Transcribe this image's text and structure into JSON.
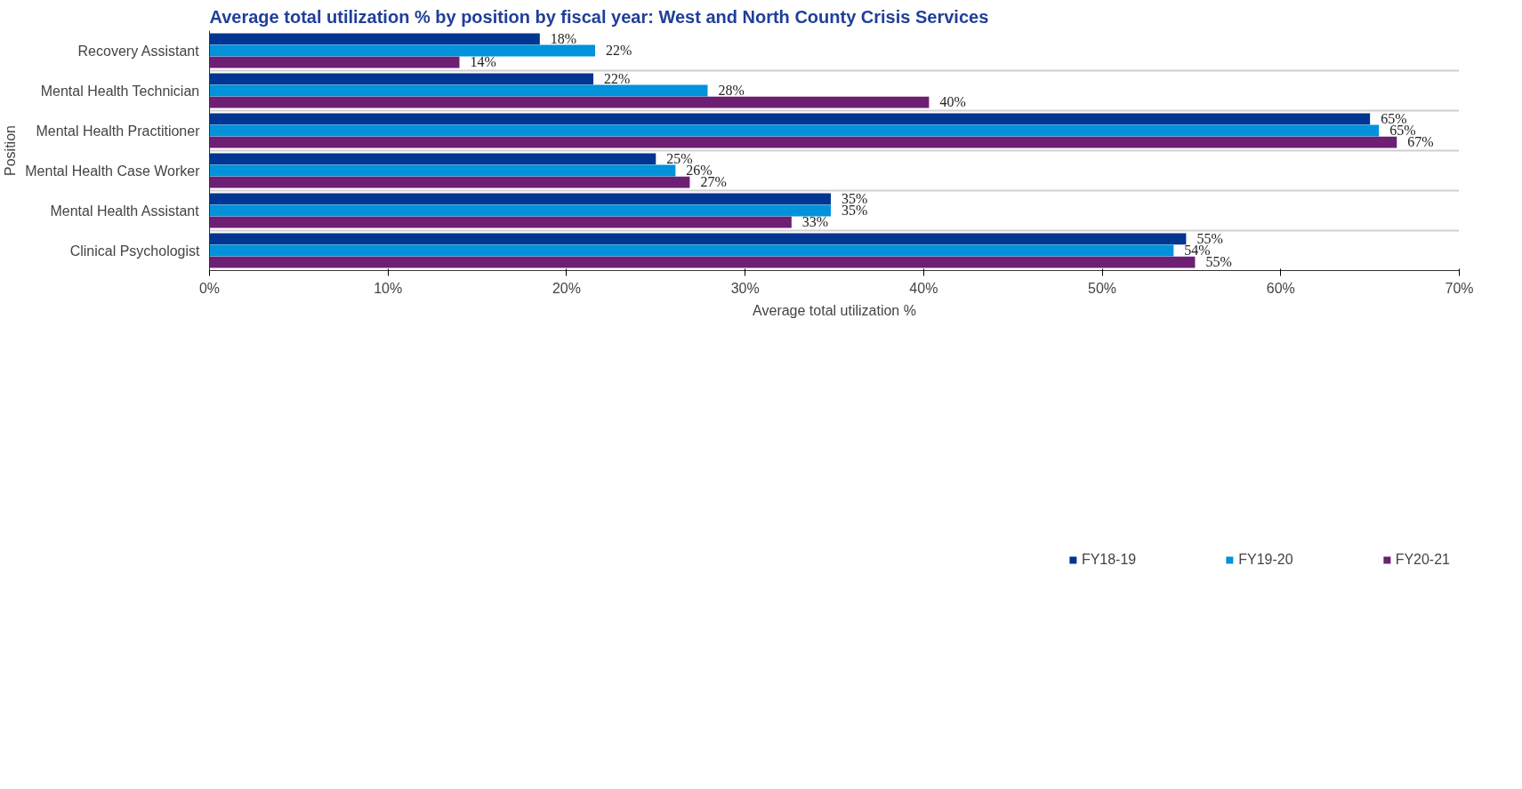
{
  "chart_data": {
    "type": "bar",
    "orientation": "horizontal",
    "title": "Average total utilization % by position by fiscal year: West and North County Crisis Services",
    "xlabel": "Average total utilization %",
    "ylabel": "Position",
    "categories": [
      "Recovery Assistant",
      "Mental Health Technician",
      "Mental Health Practitioner",
      "Mental Health Case Worker",
      "Mental Health Assistant",
      "Clinical Psychologist"
    ],
    "series": [
      {
        "name": "FY18-19",
        "color": "#003591",
        "values": [
          18.5,
          21.5,
          65.0,
          25.0,
          34.8,
          54.7
        ],
        "value_labels": [
          "18%",
          "22%",
          "65%",
          "25%",
          "35%",
          "55%"
        ]
      },
      {
        "name": "FY19-20",
        "color": "#0092db",
        "values": [
          21.6,
          27.9,
          65.5,
          26.1,
          34.8,
          54.0
        ],
        "value_labels": [
          "22%",
          "28%",
          "65%",
          "26%",
          "35%",
          "54%"
        ]
      },
      {
        "name": "FY20-21",
        "color": "#6d1f73",
        "values": [
          14.0,
          40.3,
          66.5,
          26.9,
          32.6,
          55.2
        ],
        "value_labels": [
          "14%",
          "40%",
          "67%",
          "27%",
          "33%",
          "55%"
        ]
      }
    ],
    "xlim": [
      0,
      70
    ],
    "xticks": [
      {
        "value": 0,
        "label": "0%"
      },
      {
        "value": 10,
        "label": "10%"
      },
      {
        "value": 20,
        "label": "20%"
      },
      {
        "value": 30,
        "label": "30%"
      },
      {
        "value": 40,
        "label": "40%"
      },
      {
        "value": 50,
        "label": "50%"
      },
      {
        "value": 60,
        "label": "60%"
      },
      {
        "value": 70,
        "label": "70%"
      }
    ],
    "grid": "y",
    "legend": "bottom"
  }
}
